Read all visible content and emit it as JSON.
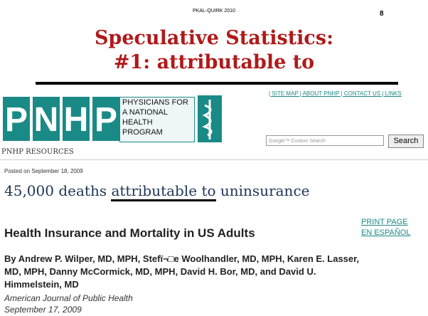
{
  "slide": {
    "header_note": "PKAL-QUIRK 2010",
    "page_number": "8",
    "title": [
      "Speculative Statistics:",
      "#1: attributable to"
    ]
  },
  "screenshot": {
    "logo_letters": [
      "P",
      "N",
      "H",
      "P"
    ],
    "logo_name": [
      "PHYSICIANS FOR",
      "A NATIONAL",
      "HEALTH",
      "PROGRAM"
    ],
    "top_links": "| SITE MAP | ABOUT PNHP | CONTACT US | LINKS",
    "search_placeholder": "Google™ Custom Search",
    "search_button": "Search",
    "section": "PNHP RESOURCES",
    "posted": "Posted on September 18, 2009",
    "headline": [
      "45,000 deaths",
      "attributable to",
      "uninsurance"
    ],
    "links": [
      "PRINT PAGE",
      "EN ESPAÑOL"
    ],
    "article_title": "Health Insurance and Mortality in US Adults",
    "authors": [
      "By Andrew P. Wilper, MD, MPH, Stefï¬□e Woolhandler, MD, MPH, Karen E. Lasser,",
      "MD, MPH, Danny McCormick, MD, MPH, David H. Bor, MD, and David U.",
      "Himmelstein, MD"
    ],
    "journal": "American Journal of Public Health",
    "date": "September 17, 2009"
  }
}
